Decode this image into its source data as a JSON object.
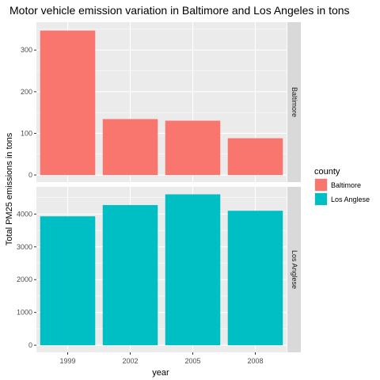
{
  "chart_data": {
    "type": "bar",
    "title": "Motor vehicle emission variation in Baltimore and Los Angeles in tons",
    "xlabel": "year",
    "ylabel": "Total PM25 emissions in tons",
    "categories": [
      "1999",
      "2002",
      "2005",
      "2008"
    ],
    "grid": true,
    "legend_position": "right",
    "legend": {
      "title": "county",
      "items": [
        {
          "label": "Baltimore",
          "color": "#F8766D"
        },
        {
          "label": "Los Anglese",
          "color": "#00BFC4"
        }
      ]
    },
    "panels": [
      {
        "strip": "Baltimore",
        "color": "#F8766D",
        "values": [
          346.8,
          134.3,
          130.4,
          88.3
        ],
        "ylim": [
          -17,
          367
        ],
        "yticks": [
          0,
          100,
          200,
          300
        ]
      },
      {
        "strip": "Los Anglese",
        "color": "#00BFC4",
        "values": [
          3931,
          4274,
          4601,
          4101
        ],
        "ylim": [
          -215,
          4830
        ],
        "yticks": [
          0,
          1000,
          2000,
          3000,
          4000
        ]
      }
    ],
    "colors": {
      "panel_bg": "#EBEBEB",
      "strip_bg": "#D9D9D9",
      "grid_major": "#FFFFFF",
      "tick": "#333333"
    }
  }
}
